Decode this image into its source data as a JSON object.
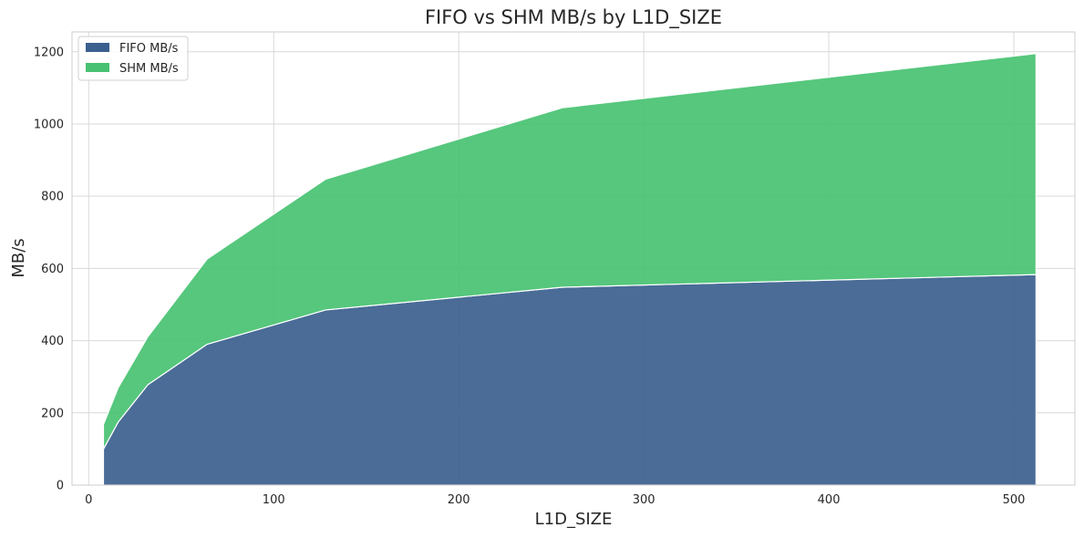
{
  "chart_data": {
    "type": "area",
    "stacked": true,
    "title": "FIFO vs SHM MB/s by L1D_SIZE",
    "xlabel": "L1D_SIZE",
    "ylabel": "MB/s",
    "x": [
      8,
      16,
      32,
      64,
      128,
      256,
      512
    ],
    "xlim": [
      -9,
      533
    ],
    "ylim": [
      0,
      1255
    ],
    "xticks": [
      0,
      100,
      200,
      300,
      400,
      500
    ],
    "yticks": [
      0,
      200,
      400,
      600,
      800,
      1000,
      1200
    ],
    "grid": true,
    "legend": "top-left",
    "series": [
      {
        "name": "FIFO MB/s",
        "color": "#3b5f8e",
        "values": [
          100,
          175,
          278,
          390,
          485,
          548,
          583
        ]
      },
      {
        "name": "SHM MB/s",
        "color": "#48c272",
        "values": [
          68,
          95,
          133,
          236,
          362,
          497,
          612
        ]
      }
    ]
  }
}
